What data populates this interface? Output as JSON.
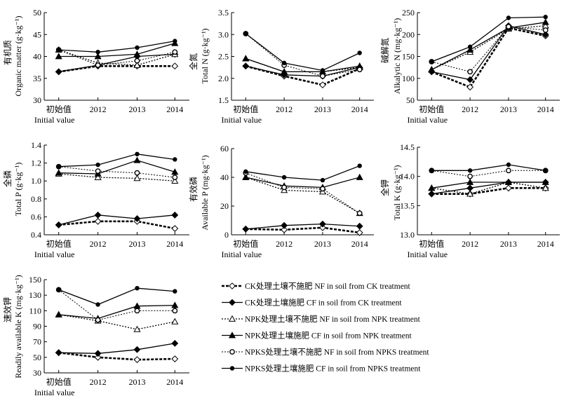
{
  "legend_entries": [
    {
      "label": "CK处理土壤不施肥 NF in soil from CK treatment",
      "dash": "4,2",
      "width": 2.6,
      "marker": "diamond-open"
    },
    {
      "label": "CK处理土壤施肥 CF in soil from CK treatment",
      "dash": "",
      "width": 1.3,
      "marker": "diamond-filled"
    },
    {
      "label": "NPK处理土壤不施肥 NF in soil from NPK treatment",
      "dash": "2,2",
      "width": 1.3,
      "marker": "triangle-open"
    },
    {
      "label": "NPK处理土壤施肥 CF in soil from NPK treatment",
      "dash": "",
      "width": 1.3,
      "marker": "triangle-filled"
    },
    {
      "label": "NPKS处理土壤不施肥 NF in soil from NPKS treatment",
      "dash": "2,2",
      "width": 1.0,
      "marker": "circle-open-small"
    },
    {
      "label": "NPKS处理土壤施肥 CF in soil from NPKS treatment",
      "dash": "",
      "width": 1.3,
      "marker": "circle-filled"
    }
  ],
  "chart_data": [
    {
      "type": "line",
      "categories": [
        "初始值",
        "2012",
        "2013",
        "2014"
      ],
      "first_category_en": "Initial value",
      "ylabel_cn": "有机质",
      "ylabel_en": "Organic matter (g·kg⁻¹)",
      "ylim": [
        30,
        50
      ],
      "yticks": [
        30,
        35,
        40,
        45,
        50
      ],
      "series": [
        {
          "values": [
            36.5,
            37.8,
            37.8,
            37.8
          ]
        },
        {
          "values": [
            36.5,
            38.0,
            40.0,
            40.5
          ]
        },
        {
          "values": [
            41.5,
            38.5,
            38.0,
            40.5
          ]
        },
        {
          "values": [
            40.0,
            40.0,
            40.5,
            43.0
          ]
        },
        {
          "values": [
            41.5,
            38.0,
            39.0,
            41.0
          ]
        },
        {
          "values": [
            41.5,
            41.0,
            42.0,
            43.5
          ]
        }
      ]
    },
    {
      "type": "line",
      "categories": [
        "初始值",
        "2012",
        "2013",
        "2014"
      ],
      "first_category_en": "Initial value",
      "ylabel_cn": "全氮",
      "ylabel_en": "Total N (g·kg⁻¹)",
      "ylim": [
        1.5,
        3.5
      ],
      "yticks": [
        1.5,
        2.0,
        2.5,
        3.0,
        3.5
      ],
      "series": [
        {
          "values": [
            2.28,
            2.05,
            1.85,
            2.22
          ]
        },
        {
          "values": [
            2.28,
            2.08,
            2.05,
            2.25
          ]
        },
        {
          "values": [
            2.45,
            2.15,
            2.15,
            2.25
          ]
        },
        {
          "values": [
            2.45,
            2.15,
            2.15,
            2.28
          ]
        },
        {
          "values": [
            3.02,
            2.3,
            2.05,
            2.2
          ]
        },
        {
          "values": [
            3.02,
            2.35,
            2.18,
            2.58
          ]
        }
      ]
    },
    {
      "type": "line",
      "categories": [
        "初始值",
        "2012",
        "2013",
        "2014"
      ],
      "first_category_en": "Initial value",
      "ylabel_cn": "碱解氮",
      "ylabel_en": "Alkalytic N (mg·kg⁻¹)",
      "ylim": [
        50,
        250
      ],
      "yticks": [
        50,
        100,
        150,
        200,
        250
      ],
      "series": [
        {
          "values": [
            115,
            80,
            215,
            197
          ]
        },
        {
          "values": [
            115,
            97,
            220,
            200
          ]
        },
        {
          "values": [
            120,
            160,
            213,
            220
          ]
        },
        {
          "values": [
            120,
            165,
            215,
            228
          ]
        },
        {
          "values": [
            138,
            115,
            218,
            210
          ]
        },
        {
          "values": [
            138,
            172,
            238,
            240
          ]
        }
      ]
    },
    {
      "type": "line",
      "categories": [
        "初始值",
        "2012",
        "2013",
        "2014"
      ],
      "first_category_en": "Initial value",
      "ylabel_cn": "全磷",
      "ylabel_en": "Total P (g·kg⁻¹)",
      "ylim": [
        0.4,
        1.4
      ],
      "yticks": [
        0.4,
        0.6,
        0.8,
        1.0,
        1.2,
        1.4
      ],
      "series": [
        {
          "values": [
            0.51,
            0.55,
            0.55,
            0.47
          ]
        },
        {
          "values": [
            0.51,
            0.62,
            0.58,
            0.62
          ]
        },
        {
          "values": [
            1.08,
            1.04,
            1.03,
            1.0
          ]
        },
        {
          "values": [
            1.09,
            1.08,
            1.23,
            1.1
          ]
        },
        {
          "values": [
            1.16,
            1.11,
            1.09,
            1.04
          ]
        },
        {
          "values": [
            1.16,
            1.18,
            1.3,
            1.24
          ]
        }
      ]
    },
    {
      "type": "line",
      "categories": [
        "初始值",
        "2012",
        "2013",
        "2014"
      ],
      "first_category_en": "Initial value",
      "ylabel_cn": "有效磷",
      "ylabel_en": "Available P (mg·kg⁻¹)",
      "ylim": [
        0,
        60
      ],
      "yticks": [
        0,
        20,
        40,
        60
      ],
      "series": [
        {
          "values": [
            4,
            3.5,
            5,
            1.5
          ]
        },
        {
          "values": [
            4,
            6.5,
            7.5,
            6
          ]
        },
        {
          "values": [
            40,
            31,
            30,
            15
          ]
        },
        {
          "values": [
            40,
            34,
            33,
            40
          ]
        },
        {
          "values": [
            43,
            33,
            32,
            15
          ]
        },
        {
          "values": [
            44,
            40,
            38,
            48
          ]
        }
      ]
    },
    {
      "type": "line",
      "categories": [
        "初始值",
        "2012",
        "2013",
        "2014"
      ],
      "first_category_en": "Initial value",
      "ylabel_cn": "全钾",
      "ylabel_en": "Total K (g·kg⁻¹)",
      "ylim": [
        13.0,
        14.5
      ],
      "yticks": [
        13.0,
        13.5,
        14.0,
        14.5
      ],
      "series": [
        {
          "values": [
            13.7,
            13.7,
            13.8,
            13.8
          ]
        },
        {
          "values": [
            13.7,
            13.8,
            13.9,
            13.9
          ]
        },
        {
          "values": [
            13.8,
            13.7,
            13.9,
            13.8
          ]
        },
        {
          "values": [
            13.8,
            13.9,
            13.9,
            13.9
          ]
        },
        {
          "values": [
            14.1,
            14.0,
            14.1,
            14.1
          ]
        },
        {
          "values": [
            14.1,
            14.1,
            14.2,
            14.1
          ]
        }
      ]
    },
    {
      "type": "line",
      "categories": [
        "初始值",
        "2012",
        "2013",
        "2014"
      ],
      "first_category_en": "Initial value",
      "ylabel_cn": "速效钾",
      "ylabel_en": "Readily available K (mg·kg⁻¹)",
      "ylim": [
        30,
        150
      ],
      "yticks": [
        30,
        50,
        70,
        90,
        110,
        130,
        150
      ],
      "series": [
        {
          "values": [
            56,
            50,
            47,
            48
          ]
        },
        {
          "values": [
            56,
            55,
            60,
            68
          ]
        },
        {
          "values": [
            105,
            97,
            86,
            96
          ]
        },
        {
          "values": [
            105,
            100,
            116,
            117
          ]
        },
        {
          "values": [
            137,
            98,
            110,
            110
          ]
        },
        {
          "values": [
            137,
            118,
            139,
            135
          ]
        }
      ]
    }
  ]
}
